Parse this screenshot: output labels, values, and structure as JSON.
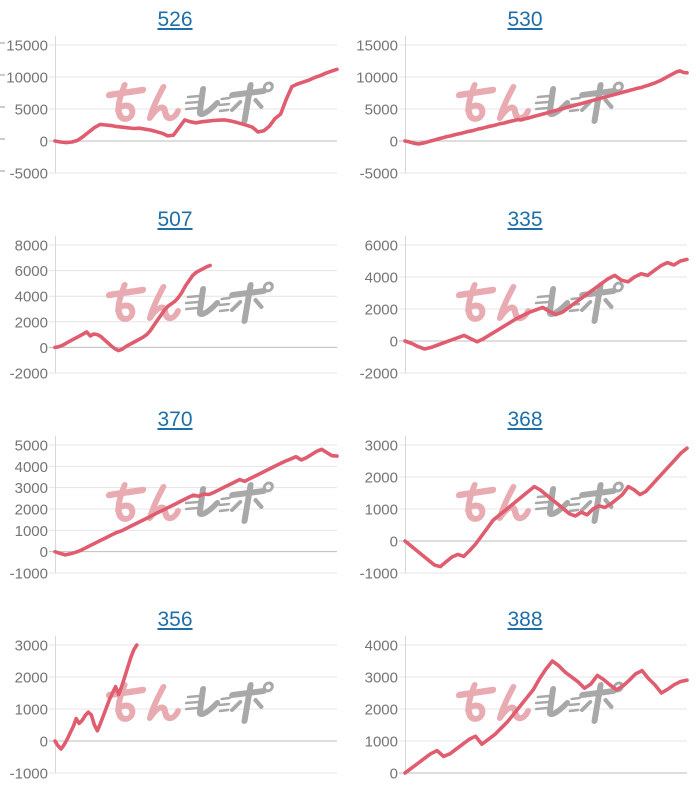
{
  "style": {
    "background": "#ffffff",
    "line_color": "#E05C6F",
    "grid_color": "#E4E4E4",
    "zero_line_color": "#BDBDBD",
    "axis_line_color": "#D8D8D8",
    "axis_label_color": "#757575",
    "title_color": "#1E6FA9",
    "watermark_pink": "#E9ABB2",
    "watermark_gray": "#A8A8A8",
    "edge_tick_color": "#C0C0C0"
  },
  "watermark": {
    "text": "みんレポ"
  },
  "artifacts": {
    "left_edge_tick_ys": [
      43,
      75,
      107,
      139,
      171
    ]
  },
  "chart_data": [
    {
      "type": "line",
      "title": "526",
      "y_ticks": [
        15000,
        10000,
        5000,
        0,
        -5000
      ],
      "ylim": [
        -5000,
        15000
      ],
      "x_extent": 1.0,
      "grid": true,
      "legend": false,
      "values": [
        0,
        -150,
        -250,
        -150,
        100,
        700,
        1400,
        2100,
        2600,
        2500,
        2400,
        2250,
        2150,
        2050,
        1950,
        2000,
        1850,
        1700,
        1450,
        1200,
        800,
        900,
        2100,
        3300,
        3000,
        2850,
        3000,
        3100,
        3200,
        3250,
        3300,
        3150,
        2950,
        2700,
        2450,
        2150,
        1400,
        1600,
        2300,
        3500,
        4200,
        6500,
        8500,
        8900,
        9200,
        9500,
        9900,
        10200,
        10600,
        10900,
        11200
      ]
    },
    {
      "type": "line",
      "title": "530",
      "y_ticks": [
        15000,
        10000,
        5000,
        0,
        -5000
      ],
      "ylim": [
        -5000,
        15000
      ],
      "x_extent": 1.0,
      "grid": true,
      "legend": false,
      "values": [
        0,
        -100,
        -250,
        -400,
        -450,
        -350,
        -200,
        -50,
        100,
        250,
        400,
        550,
        700,
        800,
        950,
        1100,
        1200,
        1350,
        1500,
        1600,
        1750,
        1900,
        2000,
        2150,
        2300,
        2400,
        2550,
        2700,
        2800,
        2950,
        3100,
        3200,
        3350,
        3300,
        3450,
        3600,
        3750,
        3900,
        4050,
        4200,
        4350,
        4500,
        4650,
        4800,
        4950,
        5100,
        5250,
        5400,
        5550,
        5700,
        5850,
        6000,
        6150,
        6300,
        6450,
        6600,
        6750,
        6900,
        7050,
        7200,
        7350,
        7500,
        7650,
        7800,
        7950,
        8100,
        8250,
        8350,
        8550,
        8700,
        8900,
        9100,
        9350,
        9600,
        9900,
        10200,
        10500,
        10800,
        10950,
        10700,
        10650
      ]
    },
    {
      "type": "line",
      "title": "507",
      "y_ticks": [
        8000,
        6000,
        4000,
        2000,
        0,
        -2000
      ],
      "ylim": [
        -2000,
        8000
      ],
      "x_extent": 0.55,
      "grid": true,
      "legend": false,
      "values": [
        0,
        50,
        150,
        300,
        450,
        600,
        750,
        900,
        1050,
        1200,
        900,
        1050,
        1000,
        850,
        600,
        350,
        100,
        -100,
        -250,
        -150,
        50,
        200,
        350,
        500,
        650,
        800,
        1000,
        1300,
        1700,
        2100,
        2500,
        2900,
        3200,
        3400,
        3600,
        3900,
        4300,
        4800,
        5200,
        5600,
        5850,
        6000,
        6150,
        6300,
        6400
      ]
    },
    {
      "type": "line",
      "title": "335",
      "y_ticks": [
        6000,
        4000,
        2000,
        0,
        -2000
      ],
      "ylim": [
        -2000,
        6000
      ],
      "x_extent": 1.0,
      "grid": true,
      "legend": false,
      "values": [
        0,
        -150,
        -350,
        -500,
        -400,
        -250,
        -100,
        50,
        200,
        350,
        150,
        -50,
        150,
        400,
        650,
        900,
        1150,
        1400,
        1600,
        1800,
        1950,
        2100,
        1850,
        1650,
        1800,
        2100,
        2400,
        2700,
        3000,
        3300,
        3600,
        3900,
        4100,
        3800,
        3700,
        4000,
        4200,
        4100,
        4400,
        4700,
        4900,
        4750,
        5000,
        5100
      ]
    },
    {
      "type": "line",
      "title": "370",
      "y_ticks": [
        5000,
        4000,
        3000,
        2000,
        1000,
        0,
        -1000
      ],
      "ylim": [
        -1000,
        5000
      ],
      "x_extent": 1.0,
      "grid": true,
      "legend": false,
      "values": [
        0,
        -80,
        -150,
        -100,
        -30,
        60,
        180,
        300,
        420,
        540,
        660,
        780,
        900,
        980,
        1100,
        1220,
        1340,
        1460,
        1580,
        1700,
        1820,
        1940,
        2060,
        2180,
        2300,
        2420,
        2540,
        2650,
        2600,
        2700,
        2680,
        2780,
        2900,
        3020,
        3140,
        3260,
        3380,
        3300,
        3420,
        3540,
        3660,
        3780,
        3900,
        4020,
        4140,
        4250,
        4350,
        4450,
        4300,
        4400,
        4550,
        4700,
        4800,
        4650,
        4500,
        4480
      ]
    },
    {
      "type": "line",
      "title": "368",
      "y_ticks": [
        3000,
        2000,
        1000,
        0,
        -1000
      ],
      "ylim": [
        -1000,
        3000
      ],
      "x_extent": 1.0,
      "grid": true,
      "legend": false,
      "values": [
        0,
        -150,
        -300,
        -450,
        -600,
        -750,
        -800,
        -650,
        -500,
        -420,
        -480,
        -300,
        -100,
        150,
        400,
        650,
        800,
        950,
        1100,
        1250,
        1400,
        1550,
        1700,
        1600,
        1450,
        1300,
        1150,
        1000,
        850,
        780,
        900,
        820,
        1000,
        1100,
        1050,
        1150,
        1300,
        1450,
        1700,
        1600,
        1450,
        1550,
        1750,
        1950,
        2150,
        2350,
        2550,
        2750,
        2900
      ]
    },
    {
      "type": "line",
      "title": "356",
      "y_ticks": [
        3000,
        2000,
        1000,
        0,
        -1000
      ],
      "ylim": [
        -1000,
        3000
      ],
      "x_extent": 0.29,
      "grid": true,
      "legend": false,
      "values": [
        0,
        -150,
        -250,
        -120,
        50,
        250,
        450,
        700,
        550,
        650,
        800,
        900,
        820,
        500,
        320,
        550,
        800,
        1050,
        1300,
        1500,
        1700,
        1450,
        1700,
        2000,
        2300,
        2600,
        2850,
        3000
      ]
    },
    {
      "type": "line",
      "title": "388",
      "y_ticks": [
        4000,
        3000,
        2000,
        1000,
        0
      ],
      "ylim": [
        0,
        4000
      ],
      "x_extent": 1.0,
      "grid": true,
      "legend": false,
      "values": [
        0,
        150,
        300,
        450,
        600,
        700,
        520,
        600,
        750,
        900,
        1050,
        1150,
        900,
        1050,
        1200,
        1400,
        1600,
        1850,
        2100,
        2350,
        2600,
        2950,
        3250,
        3500,
        3350,
        3150,
        3000,
        2850,
        2650,
        2780,
        3050,
        2920,
        2750,
        2600,
        2720,
        2900,
        3100,
        3200,
        2950,
        2750,
        2500,
        2620,
        2760,
        2860,
        2900
      ]
    }
  ]
}
